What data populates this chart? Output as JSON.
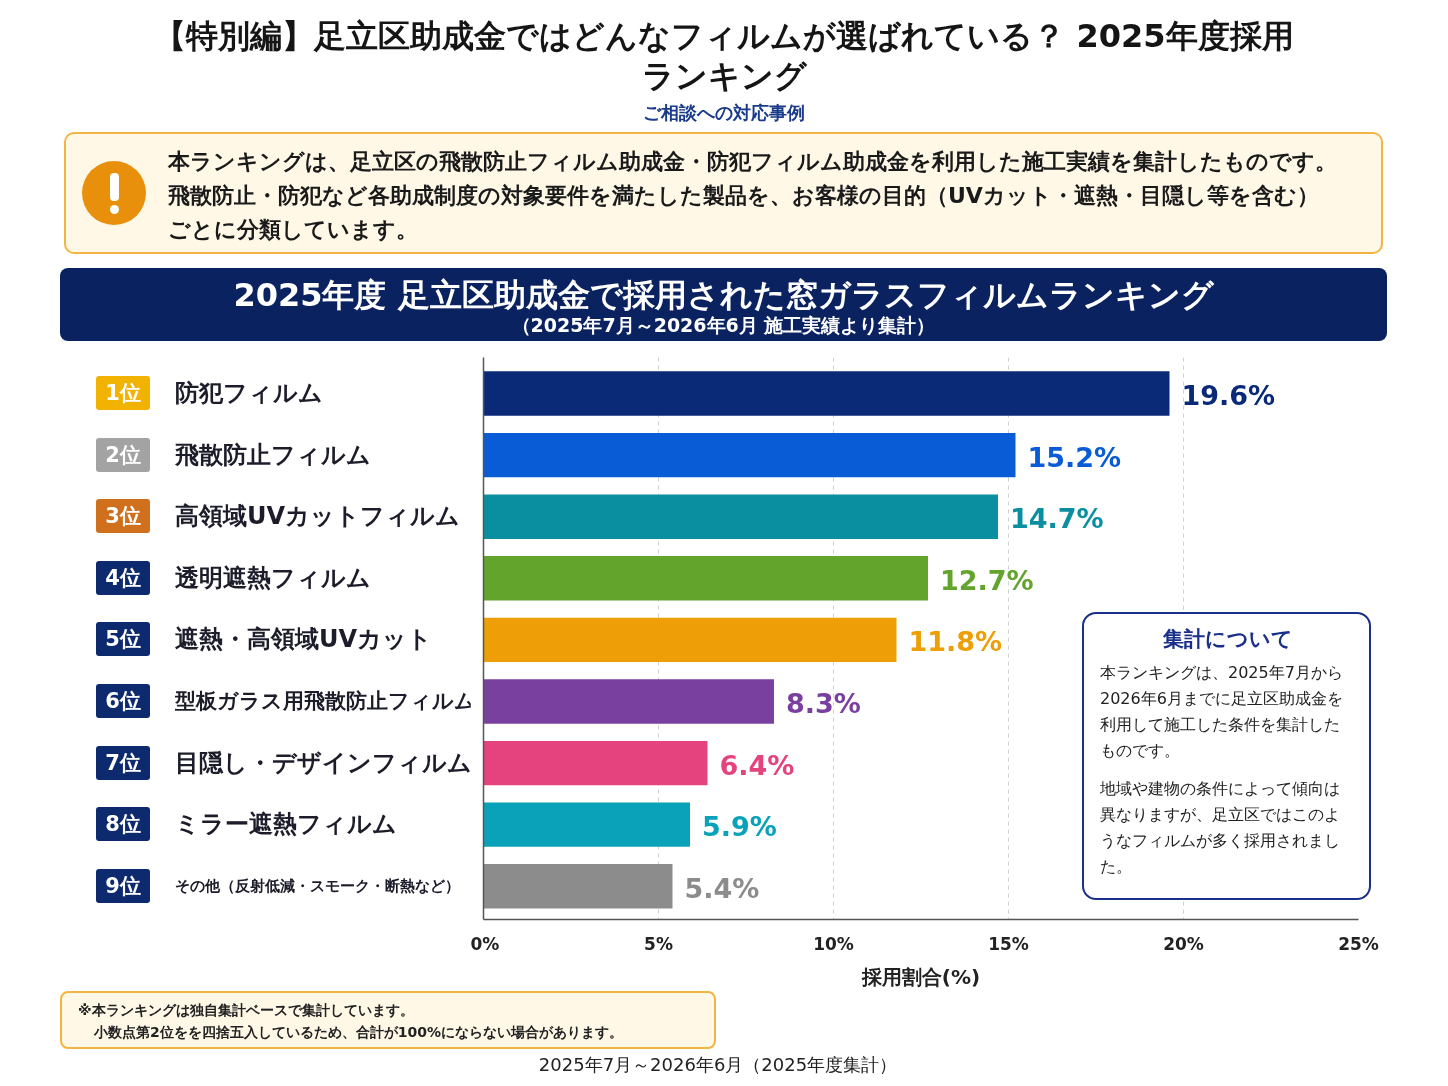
{
  "chart_data": {
    "type": "bar",
    "orientation": "horizontal",
    "title": "【特別編】足立区助成金ではどんなフィルムが選ばれている？ 2025年度採用ランキング",
    "subtitle": "ご相談への対応事例",
    "xlabel": "採用割合(%)",
    "categories": [
      "防犯フィルム",
      "飛散防止フィルム",
      "高領域UVカットフィルム",
      "透明遮熱フィルム",
      "遮熱・高領域UVカット",
      "型板ガラス用飛散防止フィルム",
      "目隠し・デザインフィルム",
      "ミラー遮熱フィルム",
      "その他（反射低減・スモーク・断熱など）"
    ],
    "values": [
      19.6,
      15.2,
      14.7,
      12.7,
      11.8,
      8.3,
      6.4,
      5.9,
      5.4
    ],
    "colors": [
      "#0a2a78",
      "#0a5cd6",
      "#0a8fa0",
      "#62a42c",
      "#ee9e06",
      "#7a40a0",
      "#e4437e",
      "#0aa2b8",
      "#8c8c8c"
    ],
    "value_labels": [
      "19.6%",
      "15.2%",
      "14.7%",
      "12.7%",
      "11.8%",
      "8.3%",
      "6.4%",
      "5.9%",
      "5.4%"
    ],
    "xlim": [
      0,
      25
    ],
    "xticks": [
      {
        "value": 0,
        "label": "0%"
      },
      {
        "value": 5,
        "label": "5%"
      },
      {
        "value": 10,
        "label": "10%"
      },
      {
        "value": 15,
        "label": "15%"
      },
      {
        "value": 20,
        "label": "20%"
      },
      {
        "value": 25,
        "label": "25%"
      }
    ],
    "grid": "x",
    "annotations": [
      "1位",
      "2位",
      "3位",
      "4位",
      "5位",
      "6位",
      "7位",
      "8位",
      "9位",
      "本ランキングは、足立区の飛散防止フィルム助成金・防犯フィルム助成金を利用した施工実績を集計したものです。",
      "飛散防止・防犯など各助成制度の対象要件を満たした製品を、お客様の目的（UVカット・遮熱・目隠し等を含む）ごとに分類しています。",
      "2025年度 足立区助成金で採用された窓ガラスフィルムランキング",
      "（2025年7月～2026年6月 施工実績より集計）",
      "集計について",
      "本ランキングは、2025年7月から2026年6月までに足立区助成金を利用して施工した条件を集計したものです。",
      "地域や建物の条件によって傾向は異なりますが、足立区ではこのようなフィルムが多く採用されました。",
      "※本ランキングは独自集計ベースで集計しています。",
      "小数点第2位をを四捨五入しているため、合計が100%にならない場合があります。",
      "2025年7月～2026年6月（2025年度集計）"
    ]
  }
}
